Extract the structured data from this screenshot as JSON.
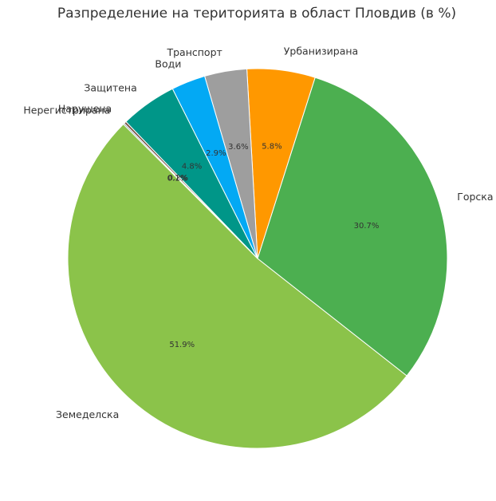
{
  "chart_data": {
    "type": "pie",
    "title": "Разпределение на територията в област Пловдив (в %)",
    "start_angle_deg": 135,
    "direction": "counterclockwise",
    "slices": [
      {
        "label": "Земеделска",
        "value": 51.9,
        "pct_label": "51.9%",
        "color": "#8bc34a"
      },
      {
        "label": "Горска",
        "value": 30.7,
        "pct_label": "30.7%",
        "color": "#4caf50"
      },
      {
        "label": "Урбанизирана",
        "value": 5.8,
        "pct_label": "5.8%",
        "color": "#ff9800"
      },
      {
        "label": "Транспорт",
        "value": 3.6,
        "pct_label": "3.6%",
        "color": "#9e9e9e"
      },
      {
        "label": "Води",
        "value": 2.9,
        "pct_label": "2.9%",
        "color": "#03a9f4"
      },
      {
        "label": "Защитена",
        "value": 4.8,
        "pct_label": "4.8%",
        "color": "#009688"
      },
      {
        "label": "Нарушена",
        "value": 0.2,
        "pct_label": "0.2%",
        "color": "#795548"
      },
      {
        "label": "Нерегистрирана",
        "value": 0.1,
        "pct_label": "0.1%",
        "color": "#607d8b"
      }
    ]
  }
}
